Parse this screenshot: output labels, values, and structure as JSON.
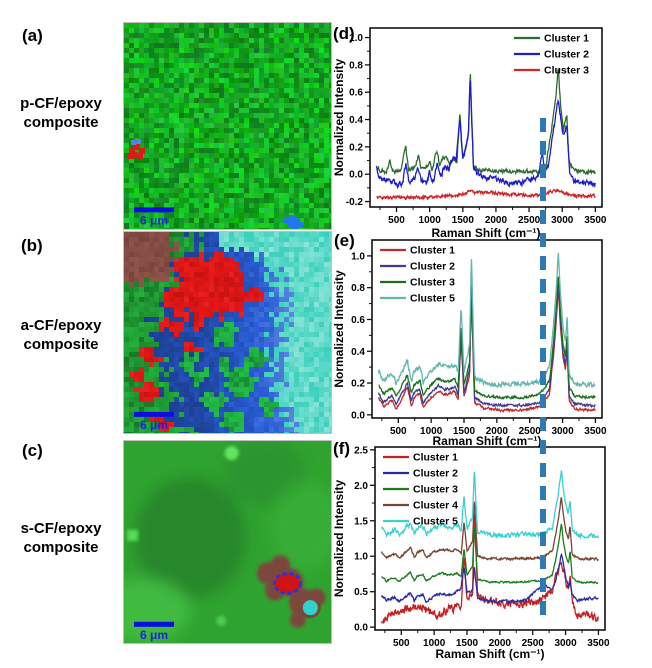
{
  "left_panels": [
    {
      "letter": "(a)",
      "caption": "p-CF/epoxy composite",
      "scalebar_label": "6 μm",
      "map_colors_present": [
        "green",
        "red",
        "blue"
      ]
    },
    {
      "letter": "(b)",
      "caption": "a-CF/epoxy composite",
      "scalebar_label": "6 μm",
      "map_colors_present": [
        "blue",
        "cyan",
        "green",
        "red",
        "brown"
      ]
    },
    {
      "letter": "(c)",
      "caption": "s-CF/epoxy composite",
      "scalebar_label": "6 μm",
      "map_colors_present": [
        "green",
        "brown",
        "red",
        "blue",
        "cyan"
      ]
    }
  ],
  "annotation": {
    "dashed_line_color": "#2e7bb4",
    "dashed_line_position_cm1": 2700
  },
  "chart_data": [
    {
      "id": "d",
      "letter": "(d)",
      "type": "line",
      "xlabel": "Raman Shift (cm⁻¹)",
      "ylabel": "Normalized Intensity",
      "xlim": [
        100,
        3600
      ],
      "ylim": [
        -0.24,
        1.07
      ],
      "xticks": [
        500,
        1000,
        1500,
        2000,
        2500,
        3000,
        3500
      ],
      "yticks": [
        -0.2,
        0.0,
        0.2,
        0.4,
        0.6,
        0.8,
        1.0
      ],
      "legend_pos": "top-right",
      "grid": false,
      "series": [
        {
          "name": "Cluster 1",
          "color": "#2e6b2e",
          "noise": 0.015,
          "points": [
            [
              200,
              0.05
            ],
            [
              250,
              0.03
            ],
            [
              350,
              0.02
            ],
            [
              400,
              0.09
            ],
            [
              440,
              0.03
            ],
            [
              560,
              0.02
            ],
            [
              640,
              0.2
            ],
            [
              680,
              0.03
            ],
            [
              790,
              0.06
            ],
            [
              830,
              0.15
            ],
            [
              870,
              0.04
            ],
            [
              1000,
              0.08
            ],
            [
              1040,
              0.03
            ],
            [
              1110,
              0.18
            ],
            [
              1150,
              0.05
            ],
            [
              1200,
              0.12
            ],
            [
              1250,
              0.13
            ],
            [
              1300,
              0.07
            ],
            [
              1360,
              0.12
            ],
            [
              1410,
              0.09
            ],
            [
              1455,
              0.45
            ],
            [
              1500,
              0.1
            ],
            [
              1585,
              0.28
            ],
            [
              1612,
              0.76
            ],
            [
              1660,
              0.05
            ],
            [
              1800,
              0.03
            ],
            [
              2100,
              0.02
            ],
            [
              2400,
              0.02
            ],
            [
              2650,
              0.02
            ],
            [
              2750,
              0.04
            ],
            [
              2860,
              0.4
            ],
            [
              2900,
              0.55
            ],
            [
              2940,
              0.78
            ],
            [
              2975,
              0.5
            ],
            [
              3020,
              0.32
            ],
            [
              3068,
              0.45
            ],
            [
              3100,
              0.1
            ],
            [
              3180,
              0.03
            ],
            [
              3350,
              0.02
            ],
            [
              3500,
              0.01
            ]
          ]
        },
        {
          "name": "Cluster 2",
          "color": "#1d1dd0",
          "noise": 0.022,
          "points": [
            [
              200,
              0.05
            ],
            [
              250,
              -0.03
            ],
            [
              320,
              -0.05
            ],
            [
              430,
              -0.06
            ],
            [
              540,
              -0.07
            ],
            [
              600,
              -0.05
            ],
            [
              640,
              0.08
            ],
            [
              690,
              -0.06
            ],
            [
              780,
              -0.02
            ],
            [
              820,
              0.05
            ],
            [
              870,
              -0.06
            ],
            [
              950,
              -0.06
            ],
            [
              1000,
              0.01
            ],
            [
              1060,
              -0.05
            ],
            [
              1110,
              0.07
            ],
            [
              1170,
              -0.01
            ],
            [
              1230,
              0.06
            ],
            [
              1290,
              0.03
            ],
            [
              1350,
              0.12
            ],
            [
              1400,
              0.1
            ],
            [
              1455,
              0.42
            ],
            [
              1500,
              0.1
            ],
            [
              1585,
              0.3
            ],
            [
              1612,
              0.7
            ],
            [
              1660,
              0.05
            ],
            [
              1750,
              -0.01
            ],
            [
              1900,
              -0.03
            ],
            [
              2050,
              -0.05
            ],
            [
              2200,
              -0.07
            ],
            [
              2320,
              -0.08
            ],
            [
              2450,
              -0.06
            ],
            [
              2580,
              -0.04
            ],
            [
              2650,
              0.0
            ],
            [
              2695,
              0.15
            ],
            [
              2740,
              0.03
            ],
            [
              2800,
              0.08
            ],
            [
              2860,
              0.3
            ],
            [
              2900,
              0.42
            ],
            [
              2940,
              0.55
            ],
            [
              2975,
              0.42
            ],
            [
              3020,
              0.28
            ],
            [
              3068,
              0.36
            ],
            [
              3110,
              0.02
            ],
            [
              3200,
              -0.06
            ],
            [
              3350,
              -0.07
            ],
            [
              3500,
              -0.06
            ]
          ]
        },
        {
          "name": "Cluster 3",
          "color": "#cc2626",
          "noise": 0.012,
          "points": [
            [
              200,
              -0.17
            ],
            [
              400,
              -0.17
            ],
            [
              700,
              -0.17
            ],
            [
              1000,
              -0.17
            ],
            [
              1250,
              -0.16
            ],
            [
              1450,
              -0.15
            ],
            [
              1600,
              -0.13
            ],
            [
              1750,
              -0.14
            ],
            [
              1900,
              -0.13
            ],
            [
              2050,
              -0.14
            ],
            [
              2200,
              -0.15
            ],
            [
              2350,
              -0.15
            ],
            [
              2500,
              -0.16
            ],
            [
              2650,
              -0.15
            ],
            [
              2800,
              -0.13
            ],
            [
              2935,
              -0.12
            ],
            [
              3050,
              -0.14
            ],
            [
              3200,
              -0.16
            ],
            [
              3350,
              -0.16
            ],
            [
              3500,
              -0.16
            ]
          ]
        }
      ]
    },
    {
      "id": "e",
      "letter": "(e)",
      "type": "line",
      "xlabel": "Raman Shift (cm⁻¹)",
      "ylabel": "Normalized Intensity",
      "xlim": [
        100,
        3600
      ],
      "ylim": [
        -0.02,
        1.1
      ],
      "xticks": [
        500,
        1000,
        1500,
        2000,
        2500,
        3000,
        3500
      ],
      "yticks": [
        0.0,
        0.2,
        0.4,
        0.6,
        0.8,
        1.0
      ],
      "legend_pos": "top-left",
      "grid": false,
      "x": [
        200,
        270,
        400,
        470,
        640,
        700,
        740,
        830,
        880,
        1000,
        1110,
        1200,
        1270,
        1360,
        1410,
        1455,
        1500,
        1585,
        1612,
        1660,
        1800,
        2100,
        2400,
        2650,
        2800,
        2860,
        2900,
        2935,
        2965,
        3005,
        3045,
        3068,
        3100,
        3180,
        3350,
        3500
      ],
      "series": [
        {
          "name": "Cluster 1",
          "color": "#c22828",
          "noise": 0.008,
          "values": [
            0.11,
            0.05,
            0.09,
            0.04,
            0.17,
            0.05,
            0.11,
            0.13,
            0.05,
            0.11,
            0.15,
            0.13,
            0.13,
            0.15,
            0.09,
            0.48,
            0.11,
            0.25,
            0.77,
            0.08,
            0.04,
            0.03,
            0.03,
            0.05,
            0.13,
            0.37,
            0.57,
            0.8,
            0.57,
            0.37,
            0.28,
            0.44,
            0.09,
            0.04,
            0.03,
            0.03
          ]
        },
        {
          "name": "Cluster 2",
          "color": "#3d3d94",
          "noise": 0.008,
          "values": [
            0.14,
            0.08,
            0.12,
            0.07,
            0.2,
            0.08,
            0.14,
            0.16,
            0.08,
            0.14,
            0.18,
            0.16,
            0.16,
            0.18,
            0.12,
            0.51,
            0.14,
            0.28,
            0.8,
            0.11,
            0.07,
            0.06,
            0.06,
            0.08,
            0.16,
            0.4,
            0.6,
            0.83,
            0.6,
            0.4,
            0.31,
            0.47,
            0.12,
            0.07,
            0.06,
            0.06
          ]
        },
        {
          "name": "Cluster 3",
          "color": "#1d6f1d",
          "noise": 0.008,
          "values": [
            0.19,
            0.13,
            0.17,
            0.12,
            0.25,
            0.13,
            0.19,
            0.21,
            0.13,
            0.19,
            0.23,
            0.21,
            0.21,
            0.23,
            0.17,
            0.56,
            0.19,
            0.33,
            0.85,
            0.16,
            0.12,
            0.11,
            0.11,
            0.13,
            0.21,
            0.45,
            0.65,
            0.88,
            0.65,
            0.45,
            0.36,
            0.52,
            0.17,
            0.12,
            0.11,
            0.11
          ]
        },
        {
          "name": "Cluster 5",
          "color": "#63b5ae",
          "noise": 0.014,
          "values": [
            0.28,
            0.21,
            0.26,
            0.2,
            0.34,
            0.21,
            0.28,
            0.3,
            0.21,
            0.28,
            0.32,
            0.3,
            0.3,
            0.32,
            0.26,
            0.68,
            0.28,
            0.43,
            1.0,
            0.24,
            0.2,
            0.19,
            0.2,
            0.21,
            0.3,
            0.56,
            0.78,
            1.03,
            0.78,
            0.56,
            0.46,
            0.64,
            0.26,
            0.2,
            0.19,
            0.19
          ]
        }
      ]
    },
    {
      "id": "f",
      "letter": "(f)",
      "type": "line",
      "xlabel": "Raman Shift (cm⁻¹)",
      "ylabel": "Normalized Intensity",
      "xlim": [
        100,
        3600
      ],
      "ylim": [
        -0.04,
        2.54
      ],
      "xticks": [
        500,
        1000,
        1500,
        2000,
        2500,
        3000,
        3500
      ],
      "yticks": [
        0.0,
        0.5,
        1.0,
        1.5,
        2.0,
        2.5
      ],
      "legend_pos": "top-left",
      "grid": false,
      "x": [
        200,
        270,
        400,
        470,
        640,
        700,
        740,
        830,
        880,
        1000,
        1110,
        1200,
        1270,
        1360,
        1410,
        1455,
        1500,
        1585,
        1612,
        1660,
        1800,
        2100,
        2400,
        2650,
        2800,
        2860,
        2900,
        2935,
        2965,
        3005,
        3045,
        3068,
        3100,
        3180,
        3350,
        3500
      ],
      "series": [
        {
          "name": "Cluster 1",
          "color": "#c42222",
          "noise": 0.055,
          "values": [
            0.1,
            0.14,
            0.18,
            0.2,
            0.27,
            0.3,
            0.29,
            0.27,
            0.22,
            0.17,
            0.21,
            0.24,
            0.27,
            0.3,
            0.26,
            1.05,
            0.38,
            0.5,
            1.8,
            0.45,
            0.38,
            0.34,
            0.32,
            0.4,
            0.55,
            0.72,
            0.85,
            0.95,
            0.82,
            0.62,
            0.55,
            0.72,
            0.35,
            0.16,
            0.18,
            0.12
          ]
        },
        {
          "name": "Cluster 2",
          "color": "#2a2aa0",
          "noise": 0.018,
          "values": [
            0.45,
            0.38,
            0.42,
            0.36,
            0.48,
            0.37,
            0.44,
            0.46,
            0.37,
            0.44,
            0.48,
            0.46,
            0.46,
            0.52,
            0.55,
            0.85,
            0.48,
            0.52,
            0.85,
            0.4,
            0.37,
            0.36,
            0.38,
            0.6,
            0.52,
            0.7,
            0.85,
            1.05,
            0.9,
            0.7,
            0.55,
            0.65,
            0.45,
            0.38,
            0.4,
            0.42
          ]
        },
        {
          "name": "Cluster 3",
          "color": "#1e7a1e",
          "noise": 0.012,
          "values": [
            0.72,
            0.65,
            0.7,
            0.64,
            0.78,
            0.65,
            0.72,
            0.74,
            0.65,
            0.72,
            0.76,
            0.74,
            0.74,
            0.76,
            0.7,
            1.12,
            0.72,
            0.87,
            1.44,
            0.68,
            0.64,
            0.63,
            0.64,
            0.65,
            0.74,
            1.0,
            1.22,
            1.47,
            1.22,
            1.0,
            0.9,
            1.08,
            0.7,
            0.64,
            0.63,
            0.63
          ]
        },
        {
          "name": "Cluster 4",
          "color": "#7a4434",
          "noise": 0.016,
          "values": [
            1.06,
            0.98,
            1.03,
            0.97,
            1.12,
            0.98,
            1.06,
            1.08,
            0.98,
            1.06,
            1.1,
            1.08,
            1.08,
            1.1,
            1.03,
            1.48,
            1.06,
            1.21,
            1.81,
            1.01,
            0.97,
            0.96,
            0.97,
            0.98,
            1.08,
            1.35,
            1.58,
            1.84,
            1.58,
            1.35,
            1.24,
            1.43,
            1.03,
            0.97,
            0.96,
            0.96
          ]
        },
        {
          "name": "Cluster 5",
          "color": "#3ecfcf",
          "noise": 0.032,
          "values": [
            1.39,
            1.31,
            1.37,
            1.3,
            1.46,
            1.31,
            1.39,
            1.41,
            1.31,
            1.39,
            1.44,
            1.41,
            1.41,
            1.44,
            1.37,
            1.84,
            1.39,
            1.56,
            2.2,
            1.35,
            1.3,
            1.29,
            1.3,
            1.31,
            1.41,
            1.71,
            1.95,
            2.23,
            1.95,
            1.71,
            1.59,
            1.8,
            1.37,
            1.3,
            1.29,
            1.29
          ]
        }
      ]
    }
  ]
}
